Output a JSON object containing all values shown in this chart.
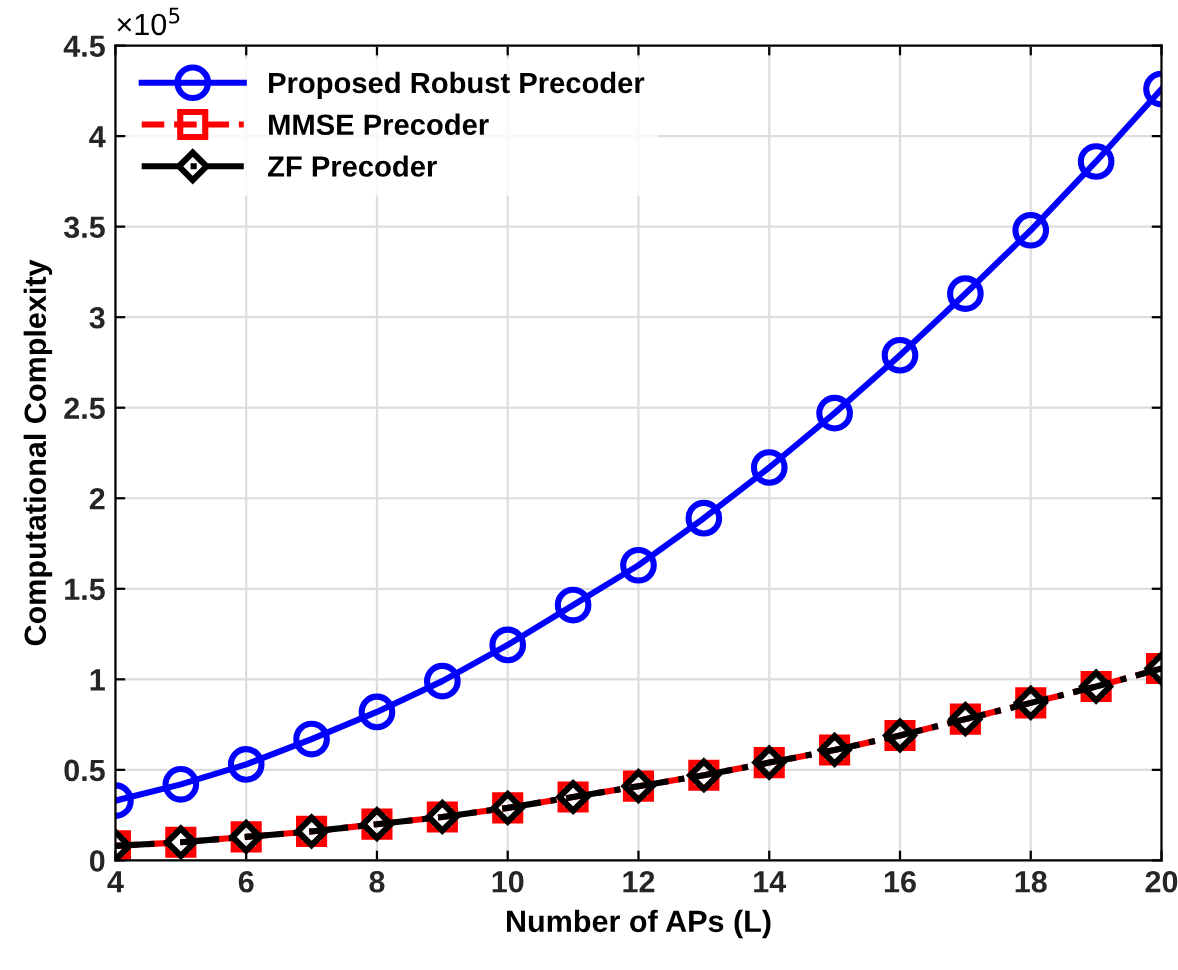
{
  "chart_data": {
    "type": "line",
    "xlabel": "Number of APs (L)",
    "ylabel": "Computational Complexity",
    "annotations": [
      "×10$^{5}$"
    ],
    "x": [
      4,
      5,
      6,
      7,
      8,
      9,
      10,
      11,
      12,
      13,
      14,
      15,
      16,
      17,
      18,
      19,
      20
    ],
    "series": [
      {
        "name": "Proposed Robust Precoder",
        "color": "#0000ff",
        "marker": "circle",
        "line_style": "solid",
        "values": [
          0.33,
          0.42,
          0.53,
          0.67,
          0.82,
          0.99,
          1.19,
          1.41,
          1.63,
          1.89,
          2.17,
          2.47,
          2.79,
          3.13,
          3.48,
          3.86,
          4.26
        ]
      },
      {
        "name": "MMSE Precoder",
        "color": "#ff0000",
        "marker": "square",
        "line_style": "dashed",
        "values": [
          0.08,
          0.1,
          0.13,
          0.16,
          0.2,
          0.24,
          0.29,
          0.35,
          0.41,
          0.47,
          0.54,
          0.61,
          0.69,
          0.78,
          0.87,
          0.96,
          1.06
        ]
      },
      {
        "name": "ZF Precoder",
        "color": "#000000",
        "marker": "diamond",
        "line_style": "dashdot",
        "values": [
          0.08,
          0.1,
          0.13,
          0.16,
          0.2,
          0.24,
          0.29,
          0.35,
          0.41,
          0.47,
          0.54,
          0.61,
          0.69,
          0.78,
          0.87,
          0.96,
          1.06
        ]
      }
    ],
    "xlim": [
      4,
      20
    ],
    "xticks": [
      4,
      6,
      8,
      10,
      12,
      14,
      16,
      18,
      20
    ],
    "ylim": [
      0,
      4.5
    ],
    "yticks": [
      0,
      0.5,
      1,
      1.5,
      2,
      2.5,
      3,
      3.5,
      4,
      4.5
    ],
    "grid": true,
    "legend": "top left"
  }
}
